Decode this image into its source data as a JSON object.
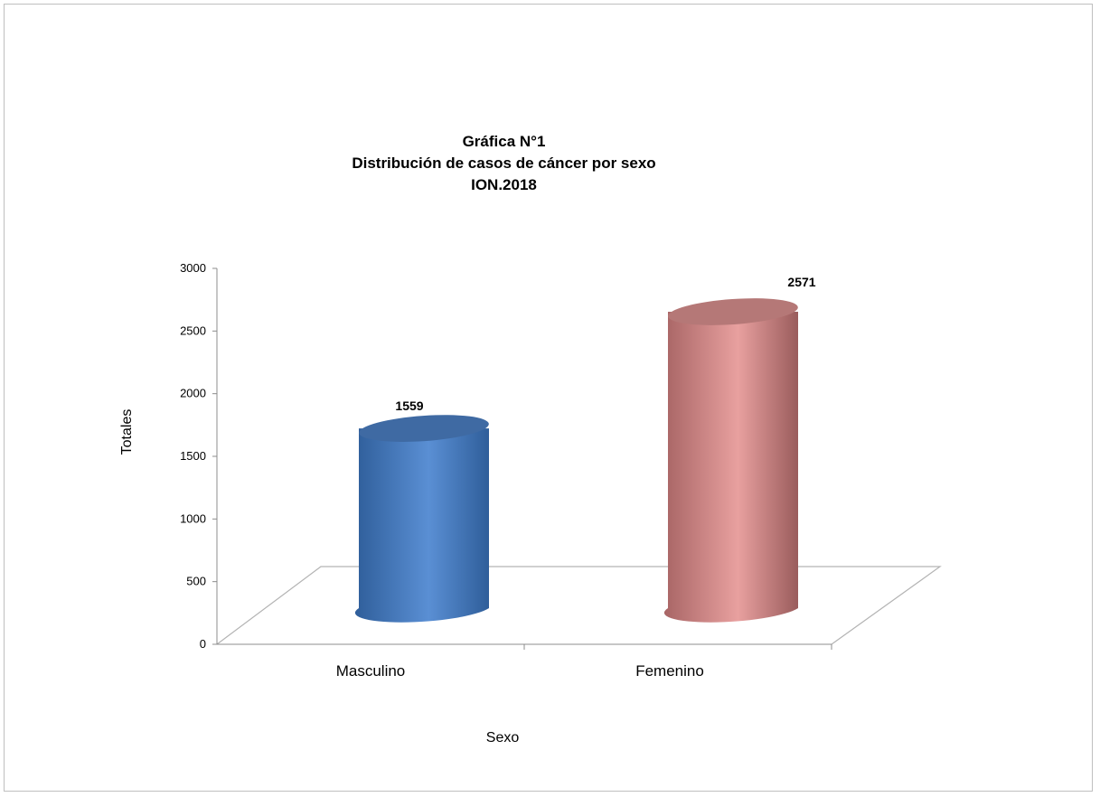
{
  "chart_data": {
    "type": "bar",
    "title": [
      "Gráfica N°1",
      "Distribución de casos de cáncer por sexo",
      "ION.2018"
    ],
    "xlabel": "Sexo",
    "ylabel": "Totales",
    "categories": [
      "Masculino",
      "Femenino"
    ],
    "values": [
      1559,
      2571
    ],
    "data_labels": [
      "1559",
      "2571"
    ],
    "ylim": [
      0,
      3000
    ],
    "yticks": [
      0,
      500,
      1000,
      1500,
      2000,
      2500,
      3000
    ],
    "colors": [
      "#4f81bd",
      "#d99594"
    ],
    "style": "3d-cylinder",
    "grid": false,
    "legend": "none"
  }
}
